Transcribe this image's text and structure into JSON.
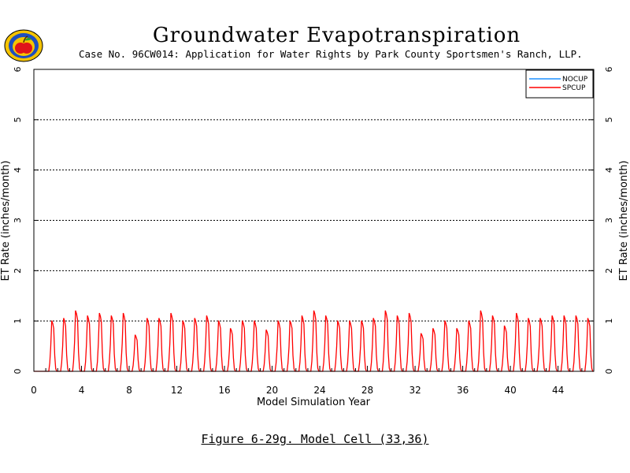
{
  "title": "Groundwater Evapotranspiration",
  "subtitle": "Case No. 96CW014: Application for Water Rights by Park County Sportsmen's Ranch, LLP.",
  "figure_caption": "Figure 6-29g.  Model Cell (33,36)",
  "logo_icon": "apple-seal-icon",
  "chart_data": {
    "type": "line",
    "title": "Groundwater Evapotranspiration",
    "xlabel": "Model Simulation Year",
    "ylabel": "ET Rate (inches/month)",
    "ylabel_right": "ET Rate (inches/month)",
    "xlim": [
      0,
      47
    ],
    "ylim": [
      0,
      6
    ],
    "x_ticks": [
      0,
      4,
      8,
      12,
      16,
      20,
      24,
      28,
      32,
      36,
      40,
      44
    ],
    "y_ticks": [
      0,
      1,
      2,
      3,
      4,
      5,
      6
    ],
    "grid": "horizontal dashed",
    "legend_position": "top-right",
    "x_resolution": "monthly",
    "series": [
      {
        "name": "NOCUP",
        "color": "#1e90ff",
        "values": []
      },
      {
        "name": "SPCUP",
        "color": "#ff0000",
        "annual_peaks": [
          0.0,
          1.0,
          1.05,
          1.2,
          1.1,
          1.15,
          1.1,
          1.15,
          0.72,
          1.05,
          1.05,
          1.15,
          1.0,
          1.05,
          1.1,
          1.0,
          0.85,
          1.0,
          1.0,
          0.82,
          1.0,
          1.0,
          1.1,
          1.2,
          1.1,
          1.0,
          1.0,
          1.0,
          1.05,
          1.2,
          1.1,
          1.15,
          0.75,
          0.85,
          1.0,
          0.85,
          1.0,
          1.2,
          1.1,
          0.9,
          1.15,
          1.05,
          1.05,
          1.1,
          1.1,
          1.1,
          1.05,
          1.05
        ]
      }
    ]
  }
}
